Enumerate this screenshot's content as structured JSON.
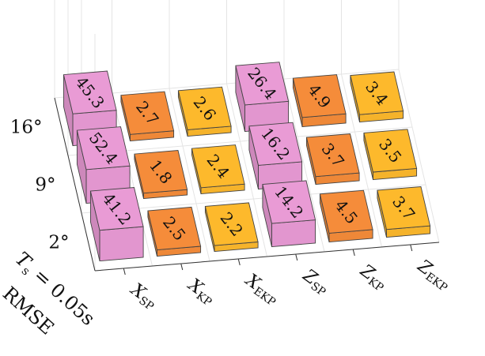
{
  "chart_data": {
    "type": "bar3d",
    "ylabel_line1": "Ts = 0.05s",
    "ylabel_parts": {
      "sym": "T",
      "sub": "s",
      "rest": " = 0.05s"
    },
    "ylabel_line2": "RMSE",
    "x_categories": [
      {
        "main": "X",
        "sub": "SP"
      },
      {
        "main": "X",
        "sub": "KP"
      },
      {
        "main": "X",
        "sub": "EKP"
      },
      {
        "main": "Z",
        "sub": "SP"
      },
      {
        "main": "Z",
        "sub": "KP"
      },
      {
        "main": "Z",
        "sub": "EKP"
      }
    ],
    "y_categories": [
      "2°",
      "9°",
      "16°"
    ],
    "values": [
      [
        41.2,
        2.5,
        2.2,
        14.2,
        4.5,
        3.7
      ],
      [
        52.4,
        1.8,
        2.4,
        16.2,
        3.7,
        3.5
      ],
      [
        45.3,
        2.7,
        2.6,
        26.4,
        4.9,
        3.4
      ]
    ],
    "value_labels": [
      [
        "41.2",
        "2.5",
        "2.2",
        "14.2",
        "4.5",
        "3.7"
      ],
      [
        "52.4",
        "1.8",
        "2.4",
        "16.2",
        "3.7",
        "3.5"
      ],
      [
        "45.3",
        "2.7",
        "2.6",
        "26.4",
        "4.9",
        "3.4"
      ]
    ],
    "colors": {
      "pink": "#e99bd5",
      "orange": "#f58c3a",
      "yellow": "#fdb92c"
    },
    "column_colors": [
      "pink",
      "orange",
      "yellow",
      "pink",
      "orange",
      "yellow"
    ],
    "grid": true
  }
}
